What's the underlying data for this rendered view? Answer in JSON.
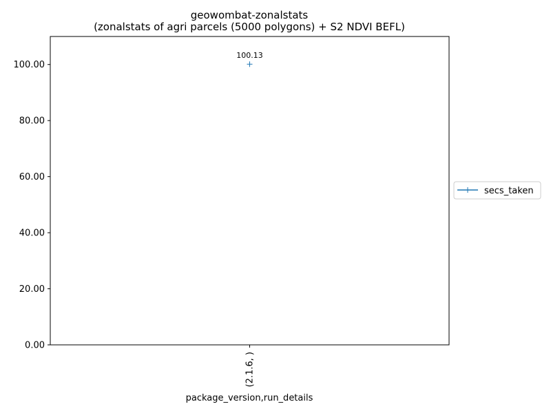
{
  "chart_data": {
    "type": "line",
    "title": "geowombat-zonalstats",
    "subtitle": "(zonalstats of agri parcels (5000 polygons) + S2 NDVI BEFL)",
    "xlabel": "package_version,run_details",
    "ylabel": "",
    "categories": [
      "(2.1.6, )"
    ],
    "series": [
      {
        "name": "secs_taken",
        "values": [
          100.13
        ],
        "labels": [
          "100.13"
        ],
        "color": "#1f77b4",
        "marker": "plus"
      }
    ],
    "ylim": [
      0,
      110
    ],
    "yticks": [
      0,
      20,
      40,
      60,
      80,
      100
    ],
    "ytick_labels": [
      "0.00",
      "20.00",
      "40.00",
      "60.00",
      "80.00",
      "100.00"
    ],
    "grid": false,
    "legend": "outside-right"
  }
}
